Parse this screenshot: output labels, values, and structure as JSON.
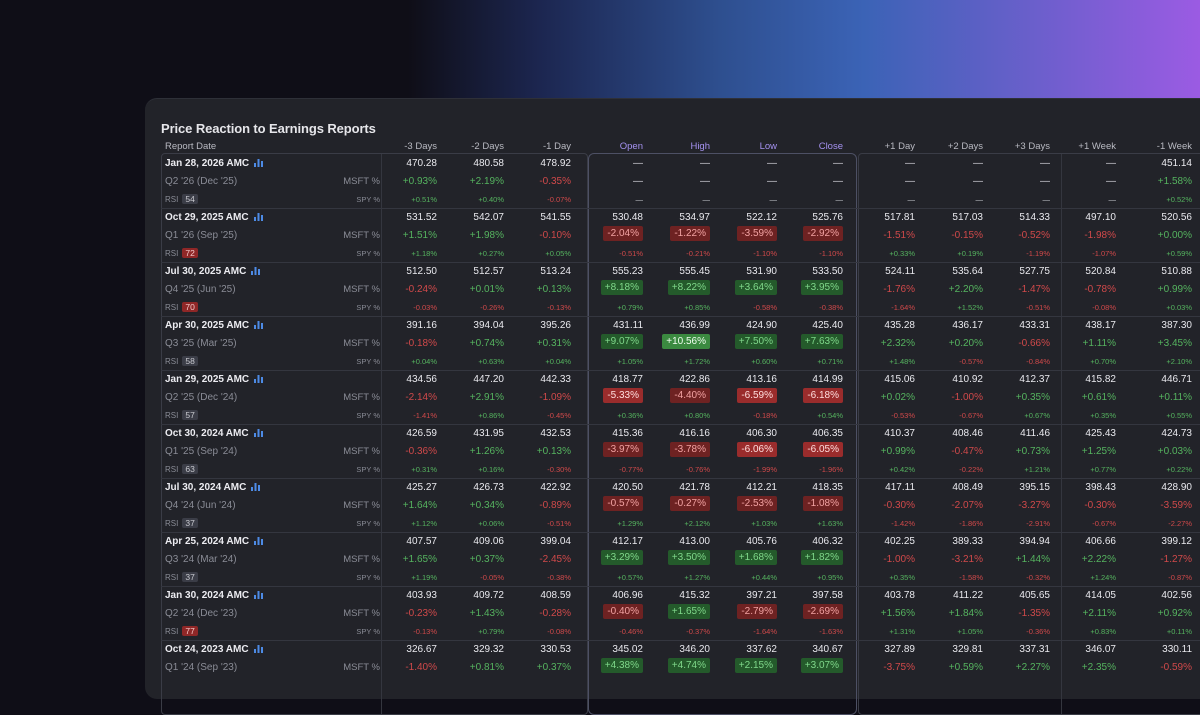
{
  "title": "Price Reaction to Earnings Reports",
  "colors": {
    "positive": "#55b35f",
    "negative": "#d0494a",
    "accent": "#a592f0",
    "chart_icon": "#4d8be6"
  },
  "headers": {
    "report_date": "Report Date",
    "cols": [
      "-3 Days",
      "-2 Days",
      "-1 Day",
      "Open",
      "High",
      "Low",
      "Close",
      "+1 Day",
      "+2 Days",
      "+3 Days",
      "+1 Week",
      "-1 Week"
    ]
  },
  "labels": {
    "msft": "MSFT %",
    "spy": "SPY %",
    "rsi": "RSI"
  },
  "rows": [
    {
      "date": "Jan 28, 2026 AMC",
      "quarter": "Q2 '26 (Dec '25)",
      "rsi": "54",
      "rsi_hot": false,
      "price": [
        "470.28",
        "480.58",
        "478.92",
        "—",
        "—",
        "—",
        "—",
        "—",
        "—",
        "—",
        "—",
        "451.14"
      ],
      "msft": [
        "+0.93%",
        "+2.19%",
        "-0.35%",
        "—",
        "—",
        "—",
        "—",
        "—",
        "—",
        "—",
        "—",
        "+1.58%"
      ],
      "spy": [
        "+0.51%",
        "+0.40%",
        "-0.07%",
        "—",
        "—",
        "—",
        "—",
        "—",
        "—",
        "—",
        "—",
        "+0.52%"
      ]
    },
    {
      "date": "Oct 29, 2025 AMC",
      "quarter": "Q1 '26 (Sep '25)",
      "rsi": "72",
      "rsi_hot": true,
      "price": [
        "531.52",
        "542.07",
        "541.55",
        "530.48",
        "534.97",
        "522.12",
        "525.76",
        "517.81",
        "517.03",
        "514.33",
        "497.10",
        "520.56"
      ],
      "msft": [
        "+1.51%",
        "+1.98%",
        "-0.10%",
        "-2.04%",
        "-1.22%",
        "-3.59%",
        "-2.92%",
        "-1.51%",
        "-0.15%",
        "-0.52%",
        "-1.98%",
        "+0.00%"
      ],
      "spy": [
        "+1.18%",
        "+0.27%",
        "+0.05%",
        "-0.51%",
        "-0.21%",
        "-1.10%",
        "-1.10%",
        "+0.33%",
        "+0.19%",
        "-1.19%",
        "-1.07%",
        "+0.59%"
      ]
    },
    {
      "date": "Jul 30, 2025 AMC",
      "quarter": "Q4 '25 (Jun '25)",
      "rsi": "70",
      "rsi_hot": true,
      "price": [
        "512.50",
        "512.57",
        "513.24",
        "555.23",
        "555.45",
        "531.90",
        "533.50",
        "524.11",
        "535.64",
        "527.75",
        "520.84",
        "510.88"
      ],
      "msft": [
        "-0.24%",
        "+0.01%",
        "+0.13%",
        "+8.18%",
        "+8.22%",
        "+3.64%",
        "+3.95%",
        "-1.76%",
        "+2.20%",
        "-1.47%",
        "-0.78%",
        "+0.99%"
      ],
      "spy": [
        "-0.03%",
        "-0.26%",
        "-0.13%",
        "+0.79%",
        "+0.85%",
        "-0.58%",
        "-0.38%",
        "-1.64%",
        "+1.52%",
        "-0.51%",
        "-0.08%",
        "+0.03%"
      ]
    },
    {
      "date": "Apr 30, 2025 AMC",
      "quarter": "Q3 '25 (Mar '25)",
      "rsi": "58",
      "rsi_hot": false,
      "price": [
        "391.16",
        "394.04",
        "395.26",
        "431.11",
        "436.99",
        "424.90",
        "425.40",
        "435.28",
        "436.17",
        "433.31",
        "438.17",
        "387.30"
      ],
      "msft": [
        "-0.18%",
        "+0.74%",
        "+0.31%",
        "+9.07%",
        "+10.56%",
        "+7.50%",
        "+7.63%",
        "+2.32%",
        "+0.20%",
        "-0.66%",
        "+1.11%",
        "+3.45%"
      ],
      "spy": [
        "+0.04%",
        "+0.63%",
        "+0.04%",
        "+1.05%",
        "+1.72%",
        "+0.60%",
        "+0.71%",
        "+1.48%",
        "-0.57%",
        "-0.84%",
        "+0.70%",
        "+2.10%"
      ]
    },
    {
      "date": "Jan 29, 2025 AMC",
      "quarter": "Q2 '25 (Dec '24)",
      "rsi": "57",
      "rsi_hot": false,
      "price": [
        "434.56",
        "447.20",
        "442.33",
        "418.77",
        "422.86",
        "413.16",
        "414.99",
        "415.06",
        "410.92",
        "412.37",
        "415.82",
        "446.71"
      ],
      "msft": [
        "-2.14%",
        "+2.91%",
        "-1.09%",
        "-5.33%",
        "-4.40%",
        "-6.59%",
        "-6.18%",
        "+0.02%",
        "-1.00%",
        "+0.35%",
        "+0.61%",
        "+0.11%"
      ],
      "spy": [
        "-1.41%",
        "+0.86%",
        "-0.45%",
        "+0.36%",
        "+0.80%",
        "-0.18%",
        "+0.54%",
        "-0.53%",
        "-0.67%",
        "+0.67%",
        "+0.35%",
        "+0.55%"
      ]
    },
    {
      "date": "Oct 30, 2024 AMC",
      "quarter": "Q1 '25 (Sep '24)",
      "rsi": "63",
      "rsi_hot": false,
      "price": [
        "426.59",
        "431.95",
        "432.53",
        "415.36",
        "416.16",
        "406.30",
        "406.35",
        "410.37",
        "408.46",
        "411.46",
        "425.43",
        "424.73"
      ],
      "msft": [
        "-0.36%",
        "+1.26%",
        "+0.13%",
        "-3.97%",
        "-3.78%",
        "-6.06%",
        "-6.05%",
        "+0.99%",
        "-0.47%",
        "+0.73%",
        "+1.25%",
        "+0.03%"
      ],
      "spy": [
        "+0.31%",
        "+0.16%",
        "-0.30%",
        "-0.77%",
        "-0.76%",
        "-1.99%",
        "-1.96%",
        "+0.42%",
        "-0.22%",
        "+1.21%",
        "+0.77%",
        "+0.22%"
      ]
    },
    {
      "date": "Jul 30, 2024 AMC",
      "quarter": "Q4 '24 (Jun '24)",
      "rsi": "37",
      "rsi_hot": false,
      "price": [
        "425.27",
        "426.73",
        "422.92",
        "420.50",
        "421.78",
        "412.21",
        "418.35",
        "417.11",
        "408.49",
        "395.15",
        "398.43",
        "428.90"
      ],
      "msft": [
        "+1.64%",
        "+0.34%",
        "-0.89%",
        "-0.57%",
        "-0.27%",
        "-2.53%",
        "-1.08%",
        "-0.30%",
        "-2.07%",
        "-3.27%",
        "-0.30%",
        "-3.59%"
      ],
      "spy": [
        "+1.12%",
        "+0.06%",
        "-0.51%",
        "+1.29%",
        "+2.12%",
        "+1.03%",
        "+1.63%",
        "-1.42%",
        "-1.86%",
        "-2.91%",
        "-0.67%",
        "-2.27%"
      ]
    },
    {
      "date": "Apr 25, 2024 AMC",
      "quarter": "Q3 '24 (Mar '24)",
      "rsi": "37",
      "rsi_hot": false,
      "price": [
        "407.57",
        "409.06",
        "399.04",
        "412.17",
        "413.00",
        "405.76",
        "406.32",
        "402.25",
        "389.33",
        "394.94",
        "406.66",
        "399.12"
      ],
      "msft": [
        "+1.65%",
        "+0.37%",
        "-2.45%",
        "+3.29%",
        "+3.50%",
        "+1.68%",
        "+1.82%",
        "-1.00%",
        "-3.21%",
        "+1.44%",
        "+2.22%",
        "-1.27%"
      ],
      "spy": [
        "+1.19%",
        "-0.05%",
        "-0.38%",
        "+0.57%",
        "+1.27%",
        "+0.44%",
        "+0.95%",
        "+0.35%",
        "-1.58%",
        "-0.32%",
        "+1.24%",
        "-0.87%"
      ]
    },
    {
      "date": "Jan 30, 2024 AMC",
      "quarter": "Q2 '24 (Dec '23)",
      "rsi": "77",
      "rsi_hot": true,
      "price": [
        "403.93",
        "409.72",
        "408.59",
        "406.96",
        "415.32",
        "397.21",
        "397.58",
        "403.78",
        "411.22",
        "405.65",
        "414.05",
        "402.56"
      ],
      "msft": [
        "-0.23%",
        "+1.43%",
        "-0.28%",
        "-0.40%",
        "+1.65%",
        "-2.79%",
        "-2.69%",
        "+1.56%",
        "+1.84%",
        "-1.35%",
        "+2.11%",
        "+0.92%"
      ],
      "spy": [
        "-0.13%",
        "+0.79%",
        "-0.08%",
        "-0.46%",
        "-0.37%",
        "-1.64%",
        "-1.63%",
        "+1.31%",
        "+1.05%",
        "-0.36%",
        "+0.83%",
        "+0.11%"
      ]
    },
    {
      "date": "Oct 24, 2023 AMC",
      "quarter": "Q1 '24 (Sep '23)",
      "rsi": "",
      "rsi_hot": false,
      "price": [
        "326.67",
        "329.32",
        "330.53",
        "345.02",
        "346.20",
        "337.62",
        "340.67",
        "327.89",
        "329.81",
        "337.31",
        "346.07",
        "330.11"
      ],
      "msft": [
        "-1.40%",
        "+0.81%",
        "+0.37%",
        "+4.38%",
        "+4.74%",
        "+2.15%",
        "+3.07%",
        "-3.75%",
        "+0.59%",
        "+2.27%",
        "+2.35%",
        "-0.59%"
      ],
      "spy": [
        "",
        "",
        "",
        "",
        "",
        "",
        "",
        "",
        "",
        "",
        "",
        ""
      ]
    }
  ]
}
